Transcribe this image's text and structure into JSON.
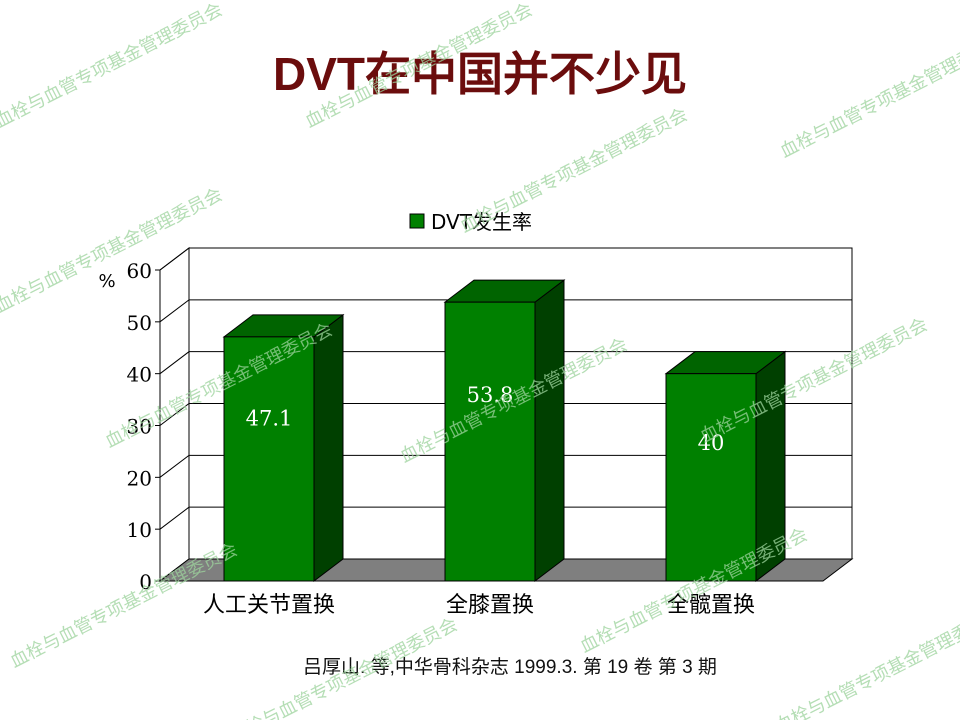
{
  "slide": {
    "title": "DVT在中国并不少见",
    "footnote": "吕厚山. 等,中华骨科杂志 1999.3. 第 19 卷 第 3 期",
    "watermark_text": "血栓与血管专项基金管理委员会"
  },
  "chart_data": {
    "type": "bar",
    "style": "3d",
    "categories": [
      "人工关节置换",
      "全膝置换",
      "全髋置换"
    ],
    "series": [
      {
        "name": "DVT发生率",
        "values": [
          47.1,
          53.8,
          40
        ],
        "data_labels": [
          "47.1",
          "53.8",
          "40"
        ]
      }
    ],
    "ylabel": "%",
    "ylim": [
      0,
      60
    ],
    "yticks": [
      "0",
      "10",
      "20",
      "30",
      "40",
      "50",
      "60"
    ],
    "grid": true,
    "legend": "top-center",
    "colors": {
      "bar_front": "#008000",
      "bar_side": "#004000",
      "bar_top": "#006400",
      "floor": "#7f7f7f",
      "grid": "#000000"
    }
  }
}
